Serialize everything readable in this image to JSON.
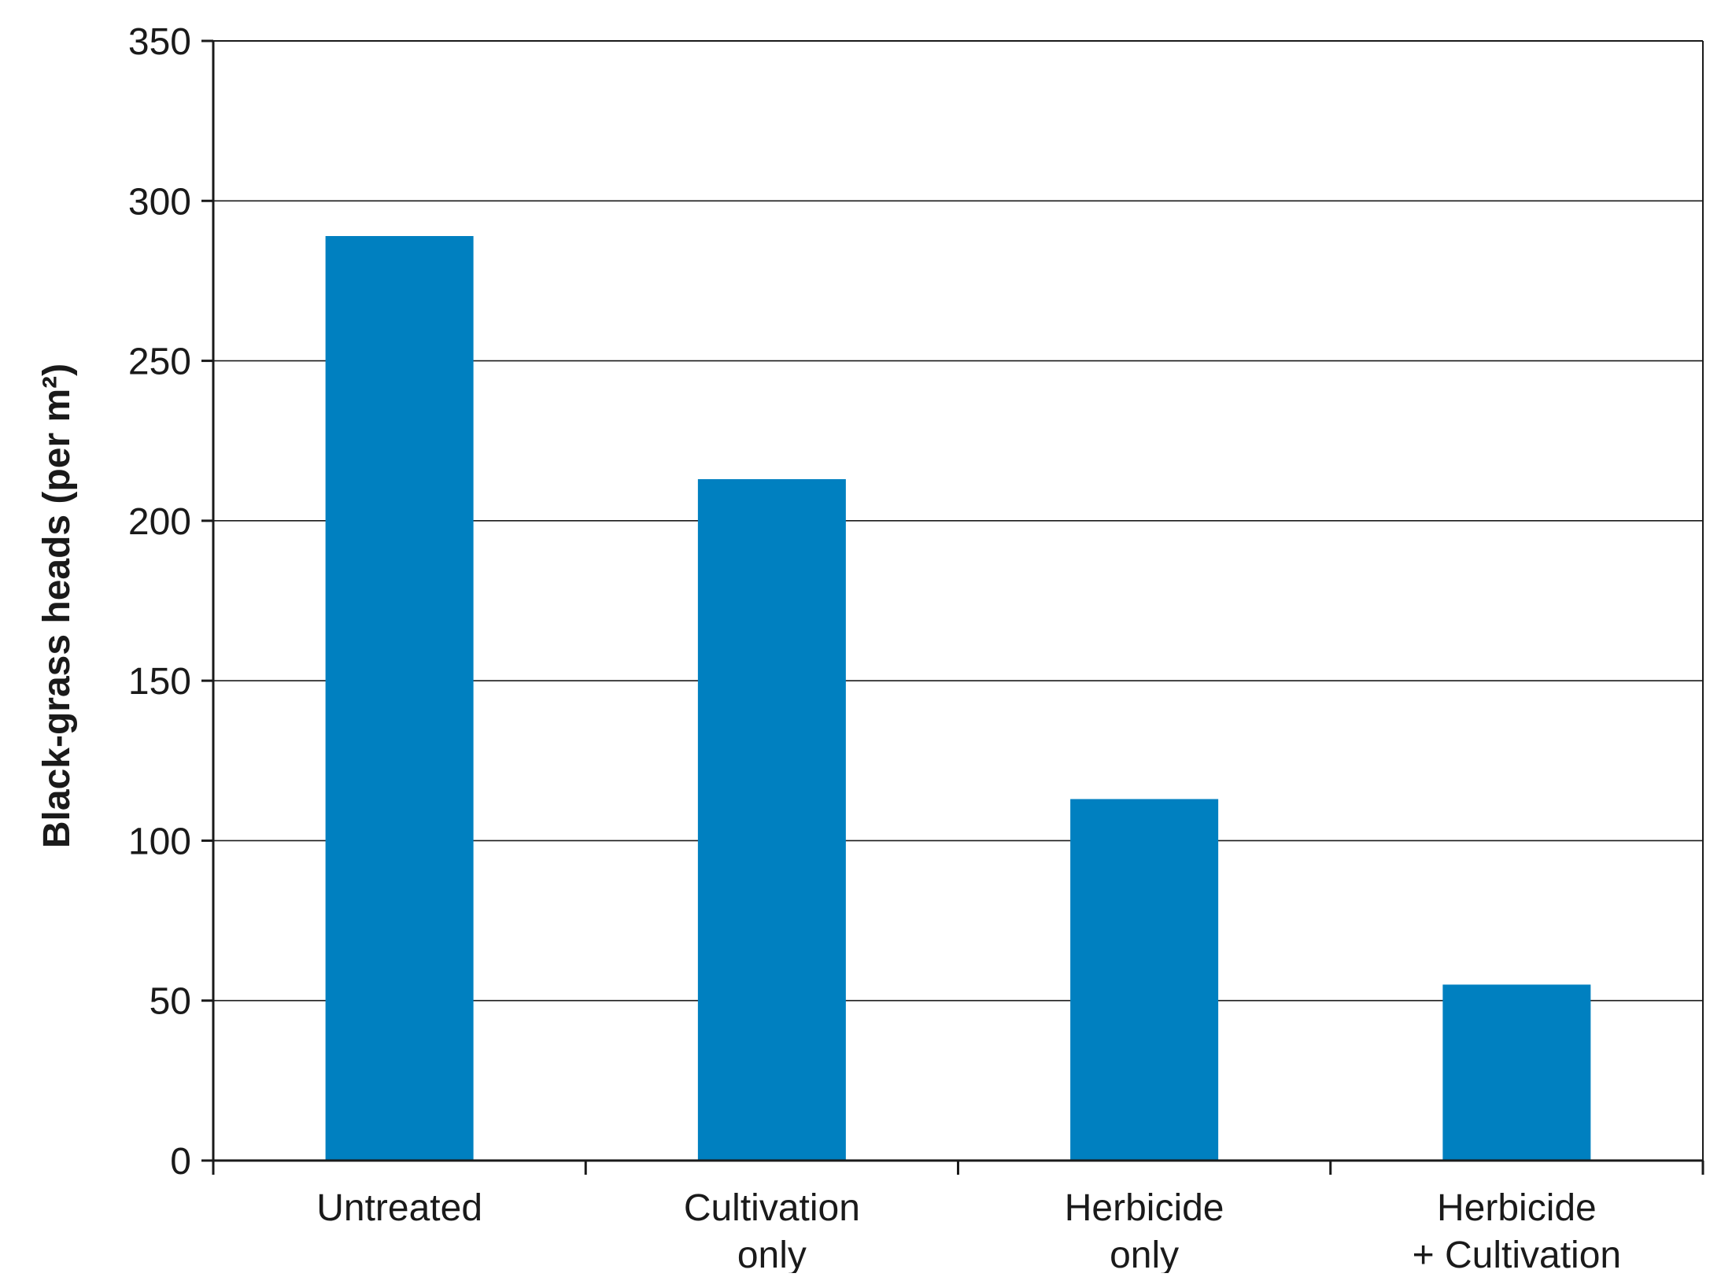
{
  "chart_data": {
    "type": "bar",
    "title": "",
    "xlabel": "",
    "ylabel": "Black-grass heads (per m²)",
    "categories": [
      [
        "Untreated"
      ],
      [
        "Cultivation",
        "only"
      ],
      [
        "Herbicide",
        "only"
      ],
      [
        "Herbicide",
        "+ Cultivation"
      ]
    ],
    "values": [
      289,
      213,
      113,
      55
    ],
    "ylim": [
      0,
      350
    ],
    "yticks": [
      0,
      50,
      100,
      150,
      200,
      250,
      300,
      350
    ],
    "grid": true,
    "legend": "none",
    "colors": {
      "bar": "#0080c0",
      "axis": "#1a1a1a",
      "grid": "#1a1a1a"
    }
  }
}
